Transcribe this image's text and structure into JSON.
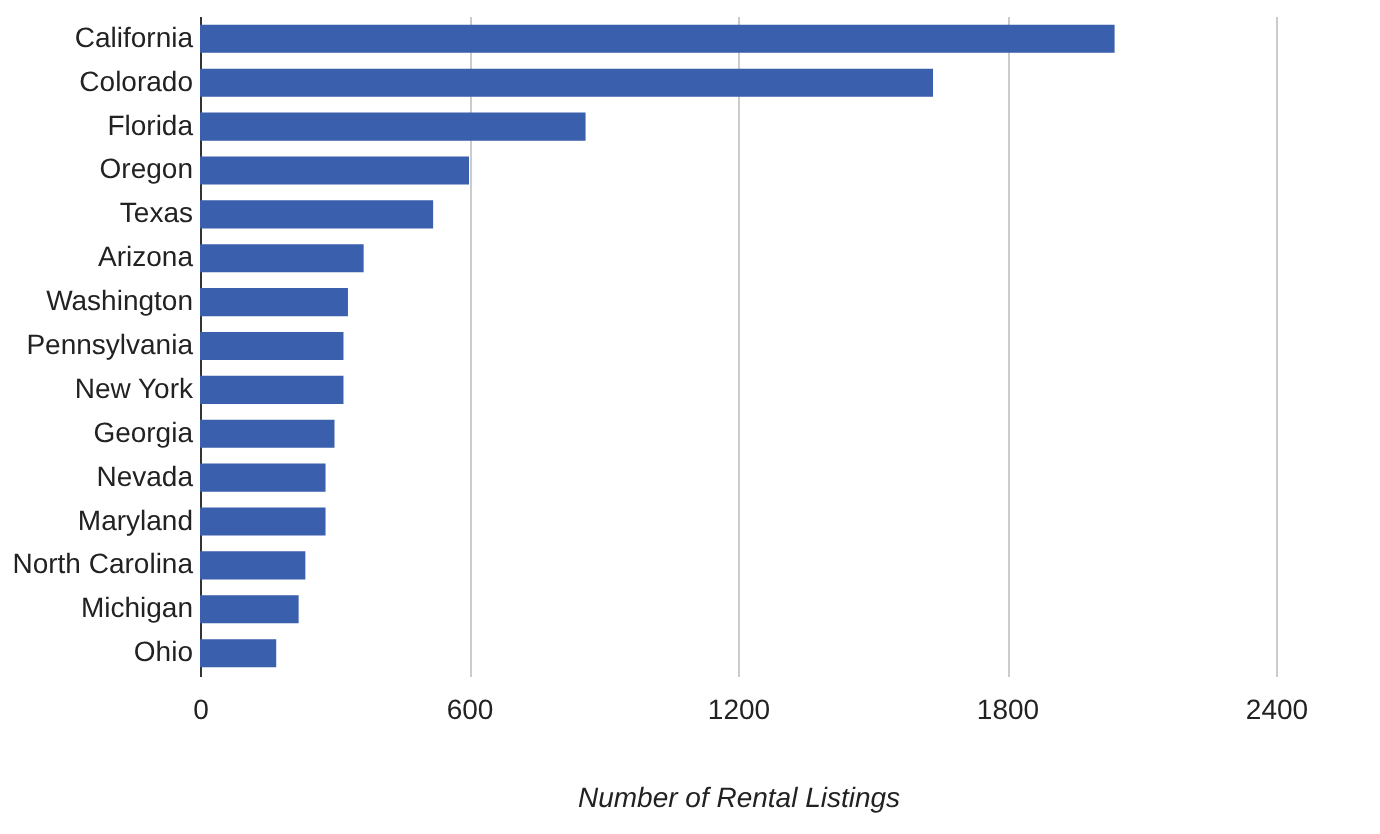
{
  "chart_data": {
    "type": "bar",
    "orientation": "horizontal",
    "xlabel": "Number of Rental Listings",
    "categories": [
      "California",
      "Colorado",
      "Florida",
      "Oregon",
      "Texas",
      "Arizona",
      "Washington",
      "Pennsylvania",
      "New York",
      "Georgia",
      "Nevada",
      "Maryland",
      "North Carolina",
      "Michigan",
      "Ohio"
    ],
    "values": [
      2040,
      1635,
      860,
      600,
      520,
      365,
      330,
      320,
      320,
      300,
      280,
      280,
      235,
      220,
      170
    ],
    "color": "#3a5fad",
    "xlim": [
      0,
      2400
    ],
    "xticks": [
      0,
      600,
      1200,
      1800,
      2400
    ],
    "grid": "x"
  }
}
